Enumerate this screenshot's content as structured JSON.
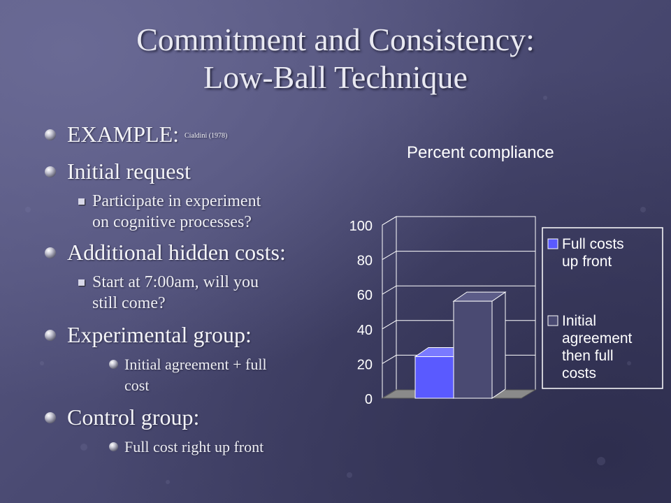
{
  "slide": {
    "title_line1": "Commitment and Consistency:",
    "title_line2": "Low-Ball Technique"
  },
  "bullets": {
    "example_label": "EXAMPLE:",
    "example_cite": "Cialdini (1978)",
    "initial_request": "Initial request",
    "initial_request_detail_1": "Participate in experiment",
    "initial_request_detail_2": "on cognitive processes?",
    "hidden_costs": "Additional hidden costs:",
    "hidden_costs_detail_1": "Start at 7:00am, will you",
    "hidden_costs_detail_2": "still come?",
    "experimental_group": "Experimental group:",
    "experimental_detail_1": "Initial agreement +  full",
    "experimental_detail_2": "cost",
    "control_group": "Control group:",
    "control_detail": "Full cost right up front"
  },
  "chart_data": {
    "type": "bar",
    "title": "Percent compliance",
    "xlabel": "",
    "ylabel": "",
    "ylim": [
      0,
      100
    ],
    "yticks": [
      "0",
      "20",
      "40",
      "60",
      "80",
      "100"
    ],
    "grid": true,
    "legend_position": "right",
    "series": [
      {
        "name": "Full costs up front",
        "legend_lines": [
          "Full costs",
          "up front"
        ],
        "value": 24,
        "color": "#5a5aff"
      },
      {
        "name": "Initial agreement then full costs",
        "legend_lines": [
          "Initial",
          "agreement",
          "then full",
          "costs"
        ],
        "value": 56,
        "color": "#4a4a72"
      }
    ]
  }
}
